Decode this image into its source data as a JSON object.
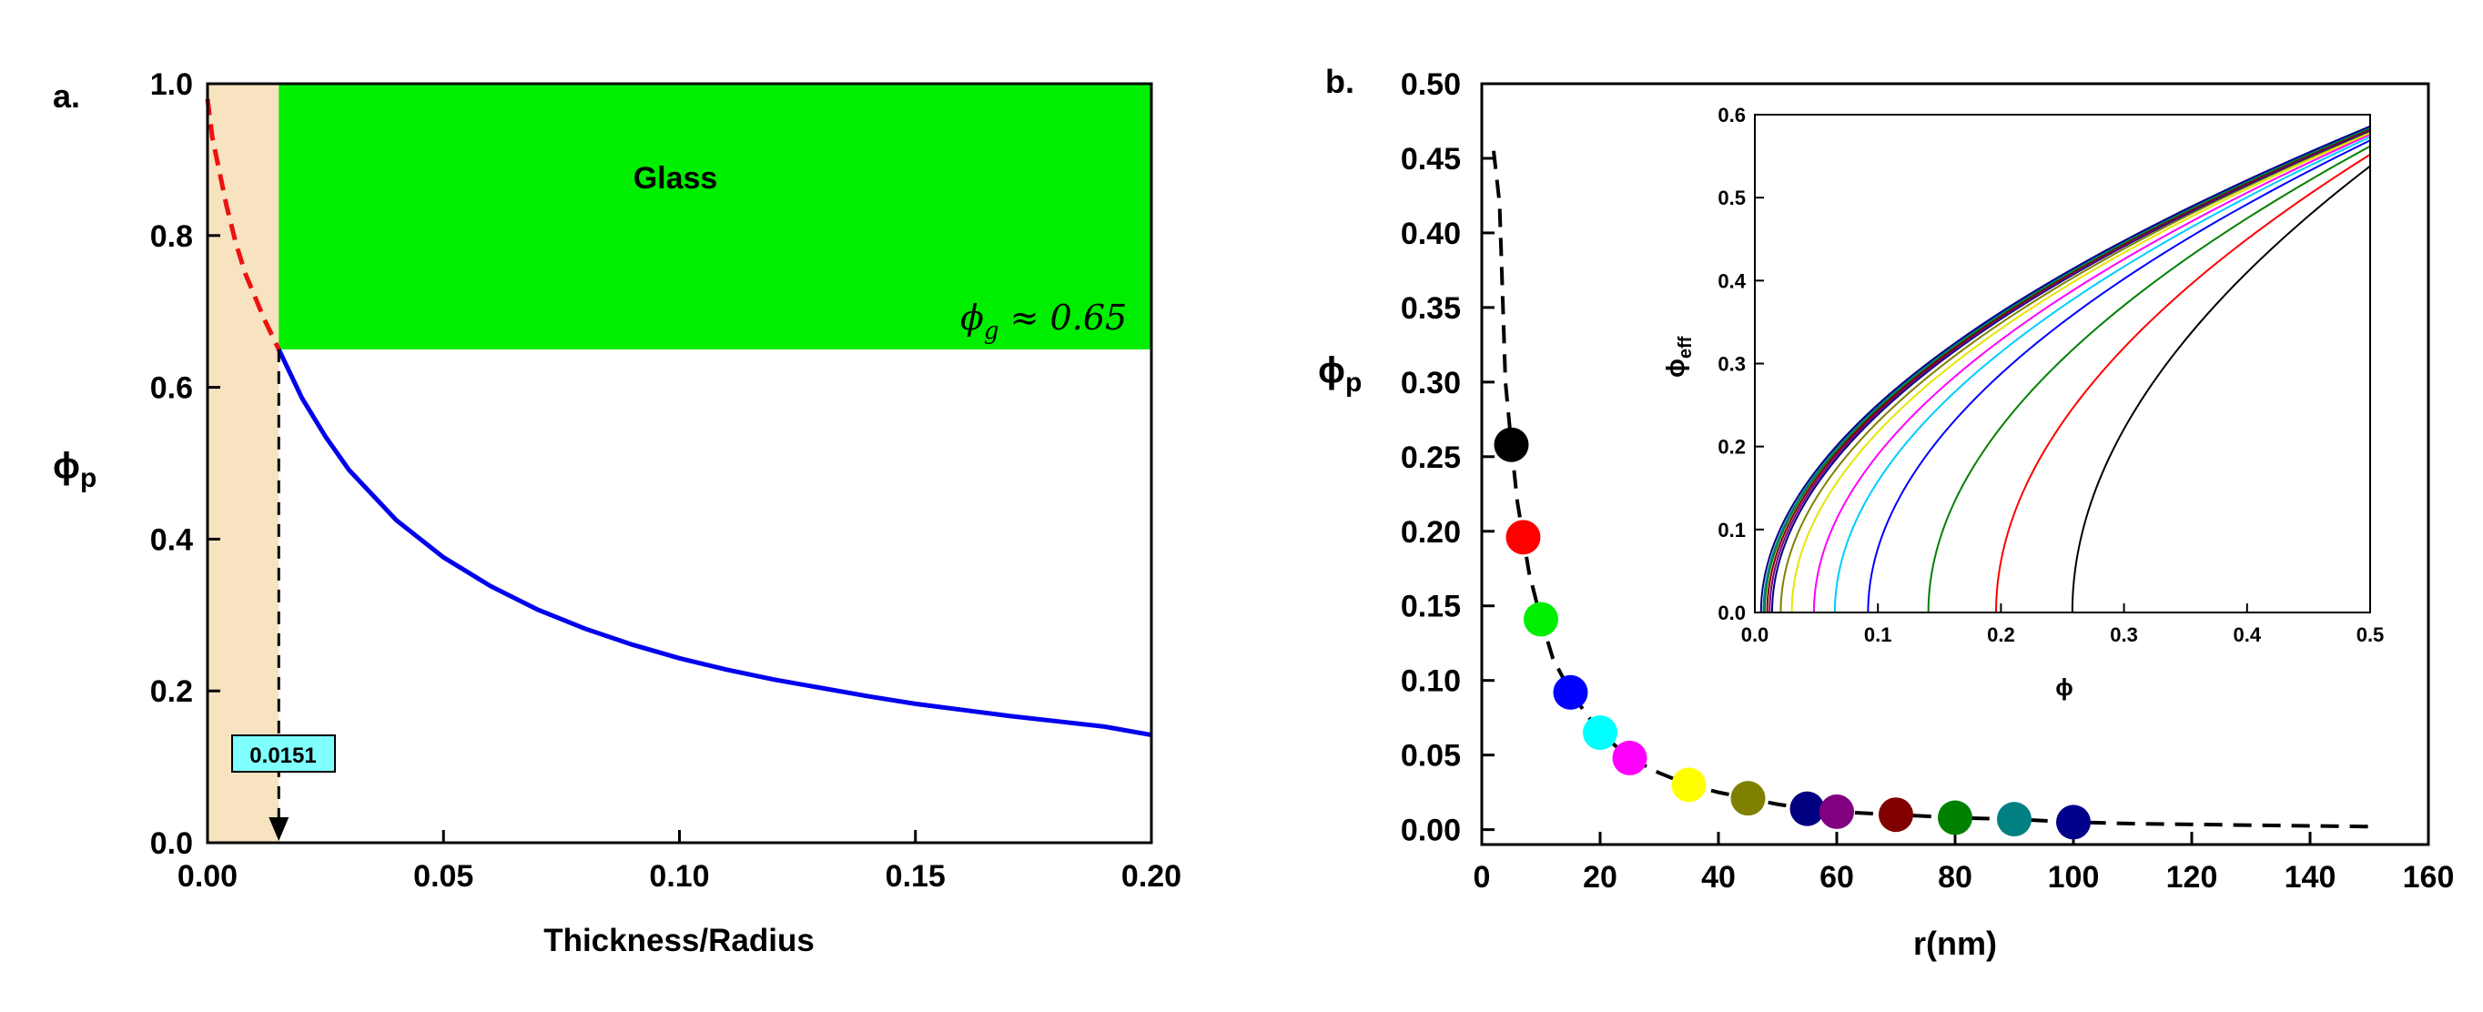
{
  "chart_data": [
    {
      "panel": "a.",
      "type": "line",
      "title": "",
      "xlabel": "Thickness/Radius",
      "ylabel": {
        "base": "ϕ",
        "sub": "p"
      },
      "xlim": [
        0,
        0.2
      ],
      "ylim": [
        0,
        1.0
      ],
      "xticks": [
        0.0,
        0.05,
        0.1,
        0.15,
        0.2
      ],
      "xtick_labels": [
        "0.00",
        "0.05",
        "0.10",
        "0.15",
        "0.20"
      ],
      "yticks": [
        0.0,
        0.2,
        0.4,
        0.6,
        0.8,
        1.0
      ],
      "ytick_labels": [
        "0.0",
        "0.2",
        "0.4",
        "0.6",
        "0.8",
        "1.0"
      ],
      "colors": {
        "glass": "#00ee00",
        "shade": "#f7e3c0",
        "curve": "#0000ee",
        "dashed": "#ee1111",
        "badge": "#80ffff"
      },
      "glass_region": {
        "label": "Glass",
        "x": [
          0.0151,
          0.2
        ],
        "y": [
          0.65,
          1.0
        ]
      },
      "shaded_region": {
        "x": [
          0,
          0.0151
        ],
        "y": [
          0,
          1.0
        ]
      },
      "phi_g_annotation": {
        "symbol": "ϕ",
        "sub": "g",
        "text": " ≈ 0.65",
        "value": 0.65
      },
      "marker": {
        "label": "0.0151",
        "x": 0.0151
      },
      "series": [
        {
          "name": "blue-curve",
          "style": "solid",
          "x": [
            0.0151,
            0.02,
            0.025,
            0.03,
            0.04,
            0.05,
            0.06,
            0.07,
            0.08,
            0.09,
            0.1,
            0.11,
            0.12,
            0.13,
            0.14,
            0.15,
            0.16,
            0.17,
            0.18,
            0.19,
            0.2
          ],
          "y": [
            0.65,
            0.586,
            0.535,
            0.491,
            0.425,
            0.376,
            0.338,
            0.307,
            0.282,
            0.261,
            0.243,
            0.228,
            0.215,
            0.204,
            0.193,
            0.183,
            0.175,
            0.167,
            0.16,
            0.153,
            0.142
          ]
        },
        {
          "name": "red-dashed",
          "style": "dashed",
          "x": [
            0.0,
            0.001,
            0.002,
            0.004,
            0.006,
            0.008,
            0.01,
            0.012,
            0.0151
          ],
          "y": [
            0.98,
            0.93,
            0.9,
            0.84,
            0.79,
            0.75,
            0.72,
            0.69,
            0.65
          ]
        }
      ]
    },
    {
      "panel": "b.",
      "type": "scatter",
      "xlabel": "r(nm)",
      "ylabel": {
        "base": "ϕ",
        "sub": "p"
      },
      "xlim": [
        0,
        160
      ],
      "ylim": [
        -0.01,
        0.5
      ],
      "xticks": [
        0,
        20,
        40,
        60,
        80,
        100,
        120,
        140,
        160
      ],
      "xtick_labels": [
        "0",
        "20",
        "40",
        "60",
        "80",
        "100",
        "120",
        "140",
        "160"
      ],
      "yticks": [
        0.0,
        0.05,
        0.1,
        0.15,
        0.2,
        0.25,
        0.3,
        0.35,
        0.4,
        0.45,
        0.5
      ],
      "ytick_labels": [
        "0.00",
        "0.05",
        "0.10",
        "0.15",
        "0.20",
        "0.25",
        "0.30",
        "0.35",
        "0.40",
        "0.45",
        "0.50"
      ],
      "points": [
        {
          "r": 5,
          "phi": 0.258,
          "color": "#000000"
        },
        {
          "r": 7,
          "phi": 0.196,
          "color": "#ff0000"
        },
        {
          "r": 10,
          "phi": 0.141,
          "color": "#00ee00"
        },
        {
          "r": 15,
          "phi": 0.092,
          "color": "#0000ff"
        },
        {
          "r": 20,
          "phi": 0.065,
          "color": "#00ffff"
        },
        {
          "r": 25,
          "phi": 0.048,
          "color": "#ff00ff"
        },
        {
          "r": 35,
          "phi": 0.03,
          "color": "#ffff00"
        },
        {
          "r": 45,
          "phi": 0.021,
          "color": "#808000"
        },
        {
          "r": 55,
          "phi": 0.014,
          "color": "#000080"
        },
        {
          "r": 60,
          "phi": 0.012,
          "color": "#800080"
        },
        {
          "r": 70,
          "phi": 0.01,
          "color": "#800000"
        },
        {
          "r": 80,
          "phi": 0.008,
          "color": "#008000"
        },
        {
          "r": 90,
          "phi": 0.007,
          "color": "#008080"
        },
        {
          "r": 100,
          "phi": 0.005,
          "color": "#00008b"
        }
      ],
      "fit_line": {
        "style": "dashed",
        "x": [
          2,
          3,
          4,
          5,
          6,
          7,
          8,
          10,
          12,
          15,
          20,
          25,
          30,
          35,
          40,
          45,
          50,
          55,
          60,
          70,
          80,
          90,
          100,
          110,
          120,
          130,
          140,
          150
        ],
        "y": [
          0.455,
          0.42,
          0.3,
          0.258,
          0.22,
          0.196,
          0.172,
          0.141,
          0.115,
          0.092,
          0.065,
          0.048,
          0.038,
          0.03,
          0.025,
          0.021,
          0.017,
          0.014,
          0.012,
          0.01,
          0.008,
          0.007,
          0.005,
          0.004,
          0.0035,
          0.003,
          0.0025,
          0.002
        ]
      },
      "inset": {
        "xlabel": "ϕ",
        "ylabel": {
          "base": "ϕ",
          "sub": "eff"
        },
        "xlim": [
          0,
          0.5
        ],
        "ylim": [
          0,
          0.6
        ],
        "xticks": [
          0.0,
          0.1,
          0.2,
          0.3,
          0.4,
          0.5
        ],
        "xtick_labels": [
          "0.0",
          "0.1",
          "0.2",
          "0.3",
          "0.4",
          "0.5"
        ],
        "yticks": [
          0.0,
          0.1,
          0.2,
          0.3,
          0.4,
          0.5,
          0.6
        ],
        "ytick_labels": [
          "0.0",
          "0.1",
          "0.2",
          "0.3",
          "0.4",
          "0.5",
          "0.6"
        ],
        "curves": [
          {
            "phi0": 0.258,
            "end": 0.538,
            "color": "#000000"
          },
          {
            "phi0": 0.196,
            "end": 0.552,
            "color": "#ff0000"
          },
          {
            "phi0": 0.141,
            "end": 0.562,
            "color": "#008000"
          },
          {
            "phi0": 0.092,
            "end": 0.569,
            "color": "#0000ff"
          },
          {
            "phi0": 0.065,
            "end": 0.573,
            "color": "#00ccff"
          },
          {
            "phi0": 0.048,
            "end": 0.576,
            "color": "#ff00ff"
          },
          {
            "phi0": 0.03,
            "end": 0.578,
            "color": "#e6e600"
          },
          {
            "phi0": 0.021,
            "end": 0.58,
            "color": "#808000"
          },
          {
            "phi0": 0.014,
            "end": 0.581,
            "color": "#000080"
          },
          {
            "phi0": 0.012,
            "end": 0.582,
            "color": "#800080"
          },
          {
            "phi0": 0.01,
            "end": 0.583,
            "color": "#800000"
          },
          {
            "phi0": 0.008,
            "end": 0.584,
            "color": "#008000"
          },
          {
            "phi0": 0.007,
            "end": 0.585,
            "color": "#008080"
          },
          {
            "phi0": 0.005,
            "end": 0.586,
            "color": "#00008b"
          }
        ]
      }
    }
  ]
}
